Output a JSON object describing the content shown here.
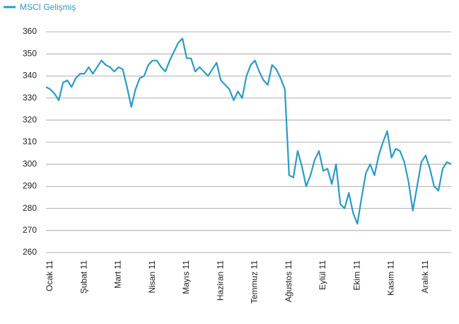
{
  "chart_data": {
    "type": "line",
    "categories": [
      null,
      "Ocak 11",
      null,
      null,
      null,
      null,
      null,
      null,
      null,
      "Şubat 11",
      null,
      null,
      null,
      null,
      null,
      null,
      null,
      "Mart 11",
      null,
      null,
      null,
      null,
      null,
      null,
      null,
      "Nisan 11",
      null,
      null,
      null,
      null,
      null,
      null,
      null,
      "Mayıs 11",
      null,
      null,
      null,
      null,
      null,
      null,
      null,
      "Haziran 11",
      null,
      null,
      null,
      null,
      null,
      null,
      null,
      "Temmuz 11",
      null,
      null,
      null,
      null,
      null,
      null,
      null,
      "Ağustos 11",
      null,
      null,
      null,
      null,
      null,
      null,
      null,
      "Eylül 11",
      null,
      null,
      null,
      null,
      null,
      null,
      null,
      "Ekim 11",
      null,
      null,
      null,
      null,
      null,
      null,
      null,
      "Kasım 11",
      null,
      null,
      null,
      null,
      null,
      null,
      null,
      "Aralık 11",
      null,
      null,
      null,
      null,
      null,
      null
    ],
    "series": [
      {
        "name": "MSCI Gelişmiş",
        "color": "#2a9cc4",
        "values": [
          335,
          334,
          332,
          329,
          337,
          338,
          335,
          339,
          341,
          341,
          344,
          341,
          344,
          347,
          345,
          344,
          342,
          344,
          343,
          335,
          326,
          334,
          339,
          340,
          345,
          347,
          347,
          344,
          342,
          347,
          351,
          355,
          357,
          348,
          348,
          342,
          344,
          342,
          340,
          343,
          346,
          338,
          336,
          334,
          329,
          333,
          330,
          340,
          345,
          347,
          342,
          338,
          336,
          345,
          343,
          339,
          334,
          295,
          294,
          306,
          299,
          290,
          295,
          302,
          306,
          297,
          298,
          291,
          300,
          282,
          280,
          287,
          278,
          273,
          285,
          296,
          300,
          295,
          304,
          310,
          315,
          303,
          307,
          306,
          301,
          292,
          279,
          290,
          301,
          304,
          298,
          290,
          288,
          298,
          301,
          300
        ]
      }
    ],
    "ylim": [
      260,
      360
    ],
    "yticks": [
      260,
      270,
      280,
      290,
      300,
      310,
      320,
      330,
      340,
      350,
      360
    ],
    "grid": true
  }
}
